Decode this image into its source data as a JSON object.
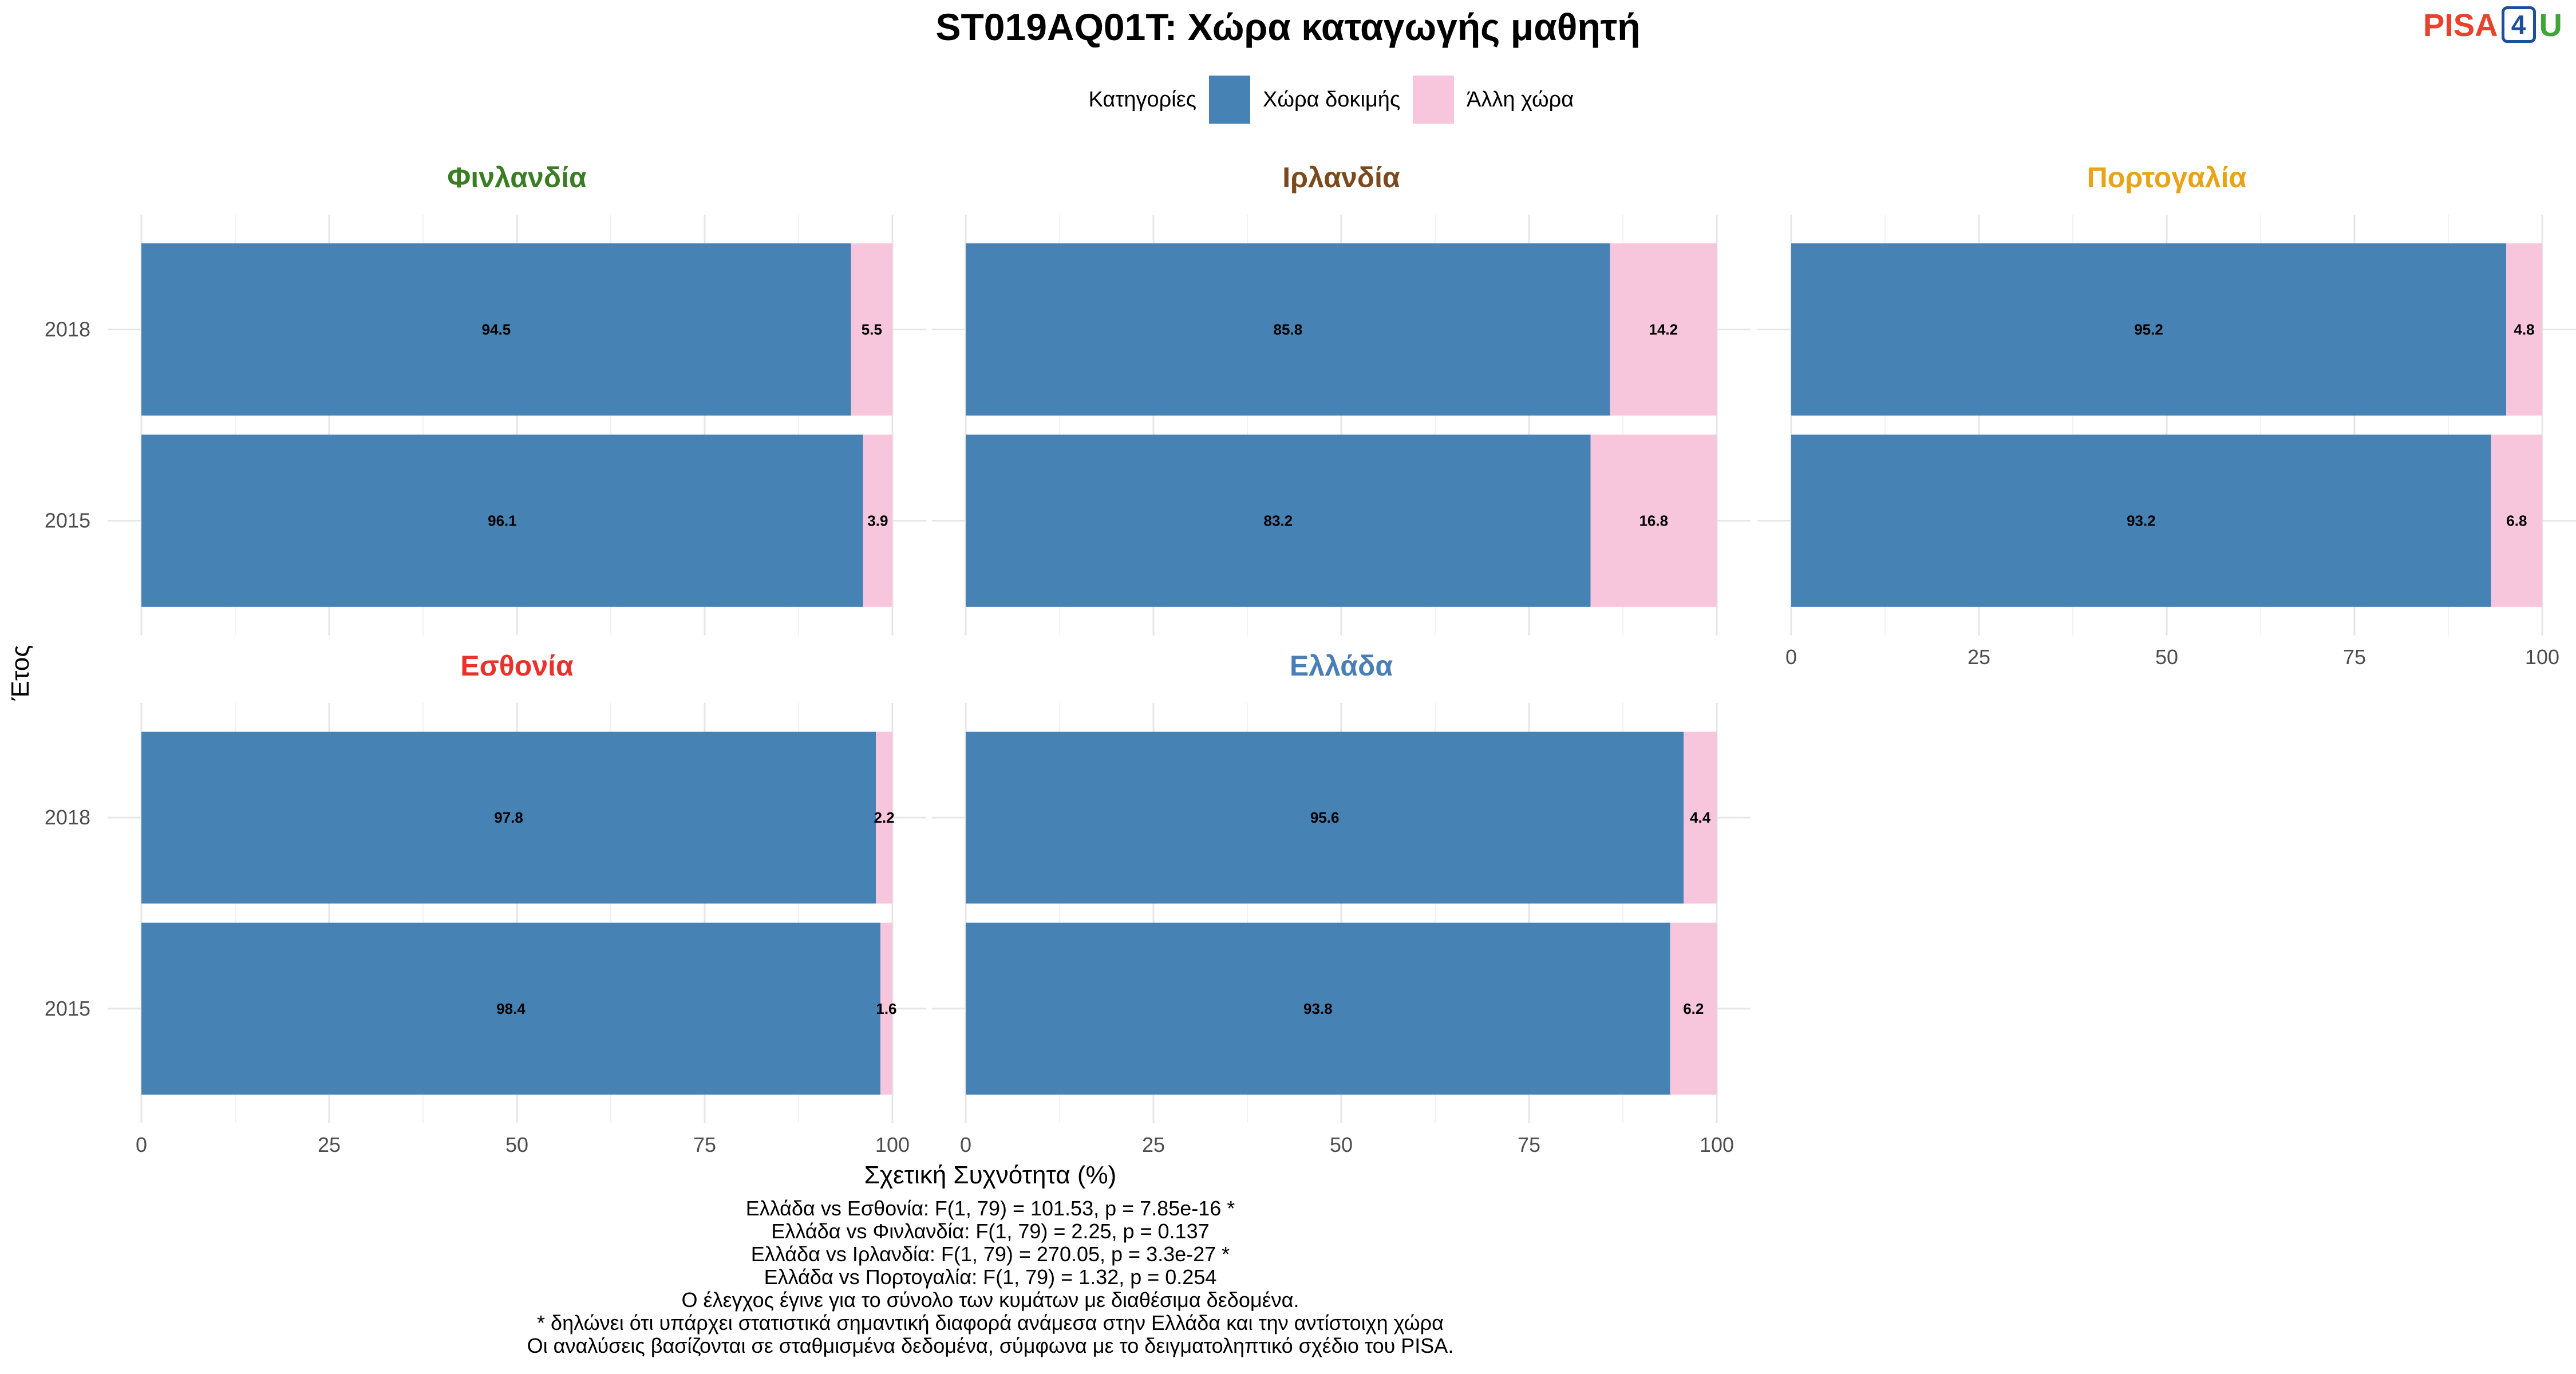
{
  "title": "ST019AQ01T: Χώρα καταγωγής μαθητή",
  "legend": {
    "title": "Κατηγορίες",
    "items": [
      {
        "label": "Χώρα δοκιμής",
        "color": "#4682b4"
      },
      {
        "label": "Άλλη χώρα",
        "color": "#f7c6dc"
      }
    ]
  },
  "logo": {
    "pisa": "PISA",
    "four": "4",
    "u": "U"
  },
  "x_axis_title": "Σχετική Συχνότητα (%)",
  "y_axis_title": "Έτος",
  "chart_data": {
    "type": "bar",
    "orientation": "horizontal",
    "stacked": true,
    "x_ticks": [
      "0",
      "25",
      "50",
      "75",
      "100"
    ],
    "xlim": [
      0,
      100
    ],
    "categories": [
      "2018",
      "2015"
    ],
    "series_names": [
      "Χώρα δοκιμής",
      "Άλλη χώρα"
    ],
    "facets": [
      {
        "name": "Φινλανδία",
        "color": "#3a7d22",
        "values": {
          "2018": [
            94.5,
            5.5
          ],
          "2015": [
            96.1,
            3.9
          ]
        }
      },
      {
        "name": "Ιρλανδία",
        "color": "#7a4a1e",
        "values": {
          "2018": [
            85.8,
            14.2
          ],
          "2015": [
            83.2,
            16.8
          ]
        }
      },
      {
        "name": "Πορτογαλία",
        "color": "#e8a317",
        "values": {
          "2018": [
            95.2,
            4.8
          ],
          "2015": [
            93.2,
            6.8
          ]
        }
      },
      {
        "name": "Εσθονία",
        "color": "#e8322c",
        "values": {
          "2018": [
            97.8,
            2.2
          ],
          "2015": [
            98.4,
            1.6
          ]
        }
      },
      {
        "name": "Ελλάδα",
        "color": "#4a7fb5",
        "values": {
          "2018": [
            95.6,
            4.4
          ],
          "2015": [
            93.8,
            6.2
          ]
        }
      }
    ]
  },
  "caption": [
    "Ελλάδα vs Εσθονία: F(1, 79) = 101.53, p = 7.85e-16 *",
    "Ελλάδα vs Φινλανδία: F(1, 79) = 2.25, p = 0.137",
    "Ελλάδα vs Ιρλανδία: F(1, 79) = 270.05, p = 3.3e-27 *",
    "Ελλάδα vs Πορτογαλία: F(1, 79) = 1.32, p = 0.254",
    "Ο έλεγχος έγινε για το σύνολο των κυμάτων με διαθέσιμα δεδομένα.",
    "* δηλώνει ότι υπάρχει στατιστικά σημαντική διαφορά ανάμεσα στην Ελλάδα και την αντίστοιχη χώρα",
    "Οι αναλύσεις βασίζονται σε σταθμισμένα δεδομένα, σύμφωνα με το δειγματοληπτικό σχέδιο του PISA."
  ]
}
